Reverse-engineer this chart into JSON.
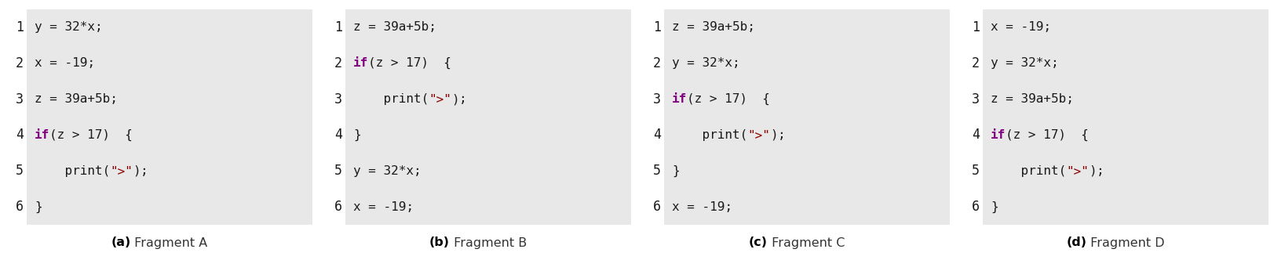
{
  "bg_color": "#e8e8e8",
  "keyword_color": "#800080",
  "string_color": "#8B0000",
  "normal_color": "#1a1a1a",
  "line_num_color": "#1a1a1a",
  "fig_width": 16.24,
  "fig_height": 3.32,
  "dpi": 100,
  "fragments": [
    {
      "label": "(a)",
      "caption": "Fragment A",
      "lines": [
        {
          "num": "1",
          "parts": [
            {
              "text": "y = 32*x;",
              "style": "normal"
            }
          ]
        },
        {
          "num": "2",
          "parts": [
            {
              "text": "x = -19;",
              "style": "normal"
            }
          ]
        },
        {
          "num": "3",
          "parts": [
            {
              "text": "z = 39a+5b;",
              "style": "normal"
            }
          ]
        },
        {
          "num": "4",
          "parts": [
            {
              "text": "if",
              "style": "keyword"
            },
            {
              "text": "(z > 17)  {",
              "style": "normal"
            }
          ]
        },
        {
          "num": "5",
          "parts": [
            {
              "text": "    print(\">\")",
              "style": "normal",
              "string_range": [
                10,
                13
              ]
            },
            {
              "text": ";",
              "style": "normal"
            }
          ]
        },
        {
          "num": "6",
          "parts": [
            {
              "text": "}",
              "style": "normal"
            }
          ]
        }
      ]
    },
    {
      "label": "(b)",
      "caption": "Fragment B",
      "lines": [
        {
          "num": "1",
          "parts": [
            {
              "text": "z = 39a+5b;",
              "style": "normal"
            }
          ]
        },
        {
          "num": "2",
          "parts": [
            {
              "text": "if",
              "style": "keyword"
            },
            {
              "text": "(z > 17)  {",
              "style": "normal"
            }
          ]
        },
        {
          "num": "3",
          "parts": [
            {
              "text": "    print(\">\")",
              "style": "normal",
              "string_range": [
                10,
                13
              ]
            },
            {
              "text": ";",
              "style": "normal"
            }
          ]
        },
        {
          "num": "4",
          "parts": [
            {
              "text": "}",
              "style": "normal"
            }
          ]
        },
        {
          "num": "5",
          "parts": [
            {
              "text": "y = 32*x;",
              "style": "normal"
            }
          ]
        },
        {
          "num": "6",
          "parts": [
            {
              "text": "x = -19;",
              "style": "normal"
            }
          ]
        }
      ]
    },
    {
      "label": "(c)",
      "caption": "Fragment C",
      "lines": [
        {
          "num": "1",
          "parts": [
            {
              "text": "z = 39a+5b;",
              "style": "normal"
            }
          ]
        },
        {
          "num": "2",
          "parts": [
            {
              "text": "y = 32*x;",
              "style": "normal"
            }
          ]
        },
        {
          "num": "3",
          "parts": [
            {
              "text": "if",
              "style": "keyword"
            },
            {
              "text": "(z > 17)  {",
              "style": "normal"
            }
          ]
        },
        {
          "num": "4",
          "parts": [
            {
              "text": "    print(\">\")",
              "style": "normal",
              "string_range": [
                10,
                13
              ]
            },
            {
              "text": ";",
              "style": "normal"
            }
          ]
        },
        {
          "num": "5",
          "parts": [
            {
              "text": "}",
              "style": "normal"
            }
          ]
        },
        {
          "num": "6",
          "parts": [
            {
              "text": "x = -19;",
              "style": "normal"
            }
          ]
        }
      ]
    },
    {
      "label": "(d)",
      "caption": "Fragment D",
      "lines": [
        {
          "num": "1",
          "parts": [
            {
              "text": "x = -19;",
              "style": "normal"
            }
          ]
        },
        {
          "num": "2",
          "parts": [
            {
              "text": "y = 32*x;",
              "style": "normal"
            }
          ]
        },
        {
          "num": "3",
          "parts": [
            {
              "text": "z = 39a+5b;",
              "style": "normal"
            }
          ]
        },
        {
          "num": "4",
          "parts": [
            {
              "text": "if",
              "style": "keyword"
            },
            {
              "text": "(z > 17)  {",
              "style": "normal"
            }
          ]
        },
        {
          "num": "5",
          "parts": [
            {
              "text": "    print(\">\")",
              "style": "normal",
              "string_range": [
                10,
                13
              ]
            },
            {
              "text": ";",
              "style": "normal"
            }
          ]
        },
        {
          "num": "6",
          "parts": [
            {
              "text": "}",
              "style": "normal"
            }
          ]
        }
      ]
    }
  ]
}
